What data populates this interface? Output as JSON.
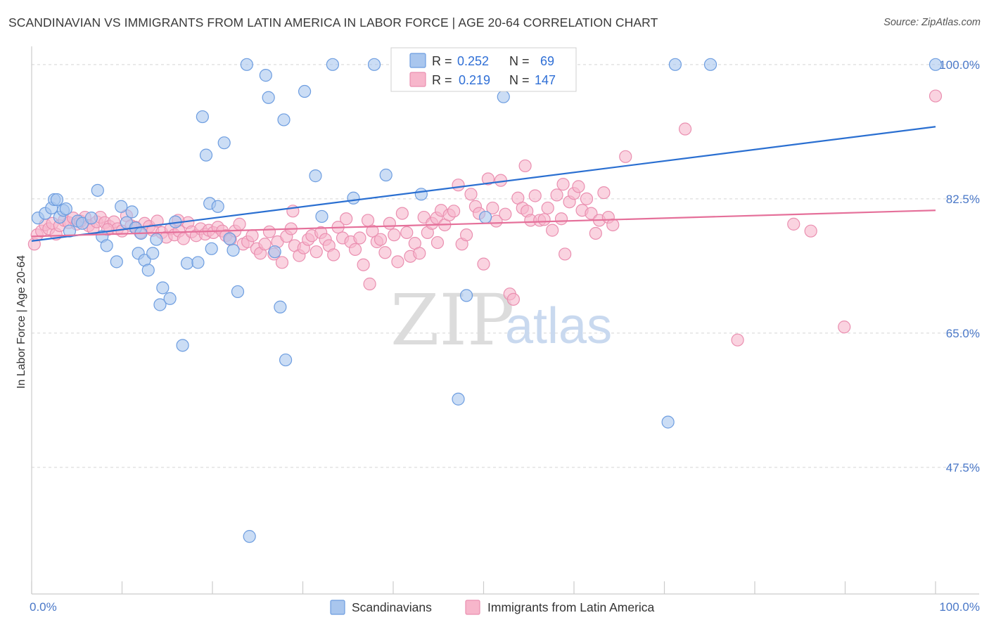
{
  "title": "SCANDINAVIAN VS IMMIGRANTS FROM LATIN AMERICA IN LABOR FORCE | AGE 20-64 CORRELATION CHART",
  "source": "Source: ZipAtlas.com",
  "watermark": {
    "zip": "ZIP",
    "atlas": "atlas"
  },
  "colors": {
    "blue_fill": "#a9c6ee",
    "blue_stroke": "#6d9de0",
    "blue_line": "#2a6fd1",
    "pink_fill": "#f7b6cb",
    "pink_stroke": "#ea8fb0",
    "pink_line": "#e5709a",
    "grid": "#d5d5d5",
    "axis": "#cccccc",
    "tick_label": "#4a78c8"
  },
  "stats": {
    "r_label": "R =",
    "n_label": "N =",
    "rows": [
      {
        "series": "Scandinavians",
        "r": "0.252",
        "n": "69"
      },
      {
        "series": "Immigrants from Latin America",
        "r": "0.219",
        "n": "147"
      }
    ]
  },
  "chart_data": {
    "type": "scatter",
    "title": "SCANDINAVIAN VS IMMIGRANTS FROM LATIN AMERICA IN LABOR FORCE | AGE 20-64 CORRELATION CHART",
    "xlabel": "",
    "ylabel": "In Labor Force | Age 20-64",
    "xlim": [
      0,
      100
    ],
    "ylim": [
      31,
      102
    ],
    "x_tick_labels": [
      "0.0%",
      "100.0%"
    ],
    "y_ticks": [
      47.5,
      65.0,
      82.5,
      100.0
    ],
    "y_tick_labels": [
      "47.5%",
      "65.0%",
      "82.5%",
      "100.0%"
    ],
    "grid": true,
    "legend_position": "bottom",
    "series": [
      {
        "name": "Scandinavians",
        "trend": {
          "x": [
            0,
            100
          ],
          "y": [
            77.0,
            91.9
          ]
        },
        "points": [
          [
            0.7,
            80.0
          ],
          [
            1.5,
            80.6
          ],
          [
            2.2,
            81.3
          ],
          [
            2.5,
            82.4
          ],
          [
            2.8,
            82.4
          ],
          [
            3.1,
            80.1
          ],
          [
            3.5,
            81.0
          ],
          [
            3.8,
            81.2
          ],
          [
            4.2,
            78.3
          ],
          [
            5.1,
            79.6
          ],
          [
            5.6,
            79.3
          ],
          [
            6.6,
            80.0
          ],
          [
            7.3,
            83.6
          ],
          [
            7.8,
            77.6
          ],
          [
            8.3,
            76.4
          ],
          [
            9.4,
            74.3
          ],
          [
            9.9,
            81.5
          ],
          [
            10.5,
            79.4
          ],
          [
            11.1,
            80.8
          ],
          [
            11.5,
            78.7
          ],
          [
            11.8,
            75.4
          ],
          [
            12.1,
            78.0
          ],
          [
            12.5,
            74.5
          ],
          [
            12.9,
            73.2
          ],
          [
            13.4,
            75.4
          ],
          [
            13.8,
            77.2
          ],
          [
            14.2,
            68.7
          ],
          [
            14.5,
            70.9
          ],
          [
            15.3,
            69.5
          ],
          [
            15.9,
            79.5
          ],
          [
            16.7,
            63.4
          ],
          [
            17.2,
            74.1
          ],
          [
            18.4,
            74.2
          ],
          [
            18.9,
            93.2
          ],
          [
            19.3,
            88.2
          ],
          [
            19.7,
            81.9
          ],
          [
            19.9,
            76.0
          ],
          [
            20.6,
            81.5
          ],
          [
            21.3,
            89.8
          ],
          [
            21.9,
            77.3
          ],
          [
            22.3,
            75.8
          ],
          [
            22.8,
            70.4
          ],
          [
            23.8,
            100.0
          ],
          [
            25.9,
            98.6
          ],
          [
            26.2,
            95.7
          ],
          [
            26.9,
            75.6
          ],
          [
            27.5,
            68.4
          ],
          [
            27.9,
            92.8
          ],
          [
            28.1,
            61.5
          ],
          [
            30.2,
            96.5
          ],
          [
            31.4,
            85.5
          ],
          [
            32.1,
            80.2
          ],
          [
            33.3,
            100.0
          ],
          [
            35.6,
            82.6
          ],
          [
            37.9,
            100.0
          ],
          [
            39.2,
            85.6
          ],
          [
            42.2,
            100.0
          ],
          [
            43.1,
            83.1
          ],
          [
            47.2,
            56.4
          ],
          [
            48.1,
            69.9
          ],
          [
            50.2,
            80.1
          ],
          [
            52.2,
            95.8
          ],
          [
            70.4,
            53.4
          ],
          [
            71.2,
            100.0
          ],
          [
            75.1,
            100.0
          ],
          [
            100.0,
            100.0
          ],
          [
            24.1,
            38.5
          ]
        ]
      },
      {
        "name": "Immigrants from Latin America",
        "trend": {
          "x": [
            0,
            100
          ],
          "y": [
            77.6,
            81.0
          ]
        },
        "points": [
          [
            0.3,
            76.6
          ],
          [
            0.6,
            77.8
          ],
          [
            1.1,
            78.3
          ],
          [
            1.5,
            79.1
          ],
          [
            1.9,
            78.6
          ],
          [
            2.3,
            79.3
          ],
          [
            2.7,
            77.9
          ],
          [
            3.1,
            79.0
          ],
          [
            3.6,
            79.7
          ],
          [
            4.1,
            79.4
          ],
          [
            4.6,
            80.0
          ],
          [
            5.0,
            79.2
          ],
          [
            5.4,
            79.6
          ],
          [
            5.9,
            80.1
          ],
          [
            6.3,
            79.0
          ],
          [
            6.8,
            78.6
          ],
          [
            7.2,
            79.5
          ],
          [
            7.6,
            80.1
          ],
          [
            8.1,
            79.4
          ],
          [
            8.6,
            78.9
          ],
          [
            9.1,
            79.5
          ],
          [
            9.5,
            78.6
          ],
          [
            10.0,
            78.3
          ],
          [
            10.5,
            80.3
          ],
          [
            11.0,
            79.0
          ],
          [
            11.5,
            78.8
          ],
          [
            12.0,
            78.1
          ],
          [
            12.5,
            79.3
          ],
          [
            13.0,
            78.9
          ],
          [
            13.4,
            78.4
          ],
          [
            13.9,
            79.6
          ],
          [
            14.4,
            78.1
          ],
          [
            14.9,
            77.5
          ],
          [
            15.4,
            78.6
          ],
          [
            15.8,
            77.8
          ],
          [
            16.3,
            78.3
          ],
          [
            16.8,
            77.3
          ],
          [
            17.3,
            79.4
          ],
          [
            17.7,
            78.2
          ],
          [
            18.2,
            77.7
          ],
          [
            18.7,
            78.6
          ],
          [
            19.2,
            77.9
          ],
          [
            19.6,
            78.4
          ],
          [
            20.1,
            78.1
          ],
          [
            20.6,
            78.8
          ],
          [
            21.1,
            78.3
          ],
          [
            21.5,
            77.7
          ],
          [
            22.0,
            77.2
          ],
          [
            22.5,
            78.3
          ],
          [
            23.0,
            79.2
          ],
          [
            23.4,
            76.6
          ],
          [
            23.9,
            76.9
          ],
          [
            24.4,
            77.7
          ],
          [
            24.9,
            76.0
          ],
          [
            25.3,
            75.4
          ],
          [
            25.8,
            76.6
          ],
          [
            26.3,
            78.2
          ],
          [
            26.8,
            75.3
          ],
          [
            27.2,
            76.9
          ],
          [
            27.7,
            74.2
          ],
          [
            28.2,
            77.6
          ],
          [
            28.7,
            78.6
          ],
          [
            29.1,
            76.4
          ],
          [
            29.6,
            75.1
          ],
          [
            30.1,
            76.1
          ],
          [
            30.6,
            77.2
          ],
          [
            31.0,
            77.7
          ],
          [
            31.5,
            75.6
          ],
          [
            32.0,
            78.1
          ],
          [
            32.5,
            77.2
          ],
          [
            32.9,
            76.4
          ],
          [
            33.4,
            75.2
          ],
          [
            33.9,
            78.8
          ],
          [
            34.4,
            77.4
          ],
          [
            34.8,
            79.9
          ],
          [
            35.3,
            76.9
          ],
          [
            35.8,
            75.9
          ],
          [
            36.3,
            77.4
          ],
          [
            36.7,
            73.9
          ],
          [
            37.2,
            79.7
          ],
          [
            37.7,
            78.3
          ],
          [
            38.2,
            76.9
          ],
          [
            38.6,
            77.2
          ],
          [
            39.1,
            75.5
          ],
          [
            39.6,
            79.3
          ],
          [
            40.1,
            77.8
          ],
          [
            40.5,
            74.3
          ],
          [
            41.0,
            80.6
          ],
          [
            41.5,
            78.1
          ],
          [
            41.9,
            75.0
          ],
          [
            42.4,
            76.7
          ],
          [
            42.9,
            75.4
          ],
          [
            43.4,
            80.1
          ],
          [
            43.8,
            78.1
          ],
          [
            44.3,
            79.3
          ],
          [
            44.8,
            80.0
          ],
          [
            45.3,
            81.0
          ],
          [
            45.7,
            79.1
          ],
          [
            46.2,
            80.4
          ],
          [
            46.7,
            80.9
          ],
          [
            47.2,
            84.3
          ],
          [
            47.6,
            76.6
          ],
          [
            48.1,
            77.8
          ],
          [
            48.6,
            83.1
          ],
          [
            49.1,
            81.5
          ],
          [
            49.5,
            80.6
          ],
          [
            50.0,
            74.0
          ],
          [
            50.5,
            85.1
          ],
          [
            51.0,
            81.3
          ],
          [
            51.4,
            79.6
          ],
          [
            51.9,
            84.9
          ],
          [
            52.4,
            80.5
          ],
          [
            52.9,
            70.1
          ],
          [
            53.3,
            69.4
          ],
          [
            53.8,
            82.6
          ],
          [
            54.3,
            81.3
          ],
          [
            54.8,
            80.9
          ],
          [
            55.2,
            79.7
          ],
          [
            55.7,
            82.9
          ],
          [
            56.2,
            79.7
          ],
          [
            56.7,
            79.8
          ],
          [
            57.1,
            81.3
          ],
          [
            57.6,
            78.4
          ],
          [
            58.1,
            83.0
          ],
          [
            58.6,
            79.9
          ],
          [
            59.0,
            75.3
          ],
          [
            59.5,
            82.1
          ],
          [
            60.0,
            83.2
          ],
          [
            60.5,
            84.1
          ],
          [
            60.9,
            81.0
          ],
          [
            61.4,
            82.5
          ],
          [
            61.9,
            80.6
          ],
          [
            62.4,
            78.0
          ],
          [
            62.8,
            79.7
          ],
          [
            63.3,
            83.3
          ],
          [
            63.8,
            80.1
          ],
          [
            64.3,
            79.1
          ],
          [
            65.7,
            88.0
          ],
          [
            72.3,
            91.6
          ],
          [
            78.1,
            64.1
          ],
          [
            84.3,
            79.2
          ],
          [
            86.2,
            78.3
          ],
          [
            89.9,
            65.8
          ],
          [
            100.0,
            95.9
          ],
          [
            37.4,
            71.4
          ],
          [
            16.2,
            79.7
          ],
          [
            8.4,
            78.5
          ],
          [
            28.9,
            80.9
          ],
          [
            44.9,
            76.8
          ],
          [
            54.6,
            86.8
          ],
          [
            58.8,
            84.4
          ]
        ]
      }
    ]
  },
  "legend": {
    "items": [
      {
        "label": "Scandinavians",
        "color_key": "blue"
      },
      {
        "label": "Immigrants from Latin America",
        "color_key": "pink"
      }
    ]
  }
}
